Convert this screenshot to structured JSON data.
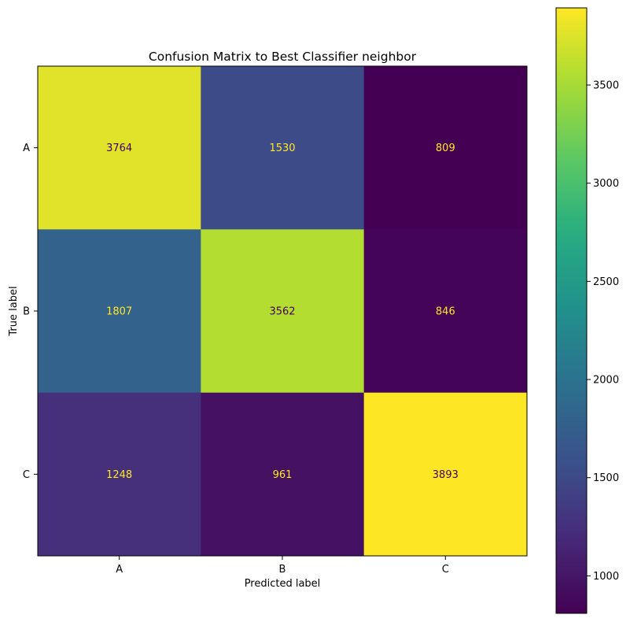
{
  "chart_data": {
    "type": "heatmap",
    "title": "Confusion Matrix to Best Classifier neighbor",
    "xlabel": "Predicted label",
    "ylabel": "True label",
    "x_categories": [
      "A",
      "B",
      "C"
    ],
    "y_categories": [
      "A",
      "B",
      "C"
    ],
    "values": [
      [
        3764,
        1530,
        809
      ],
      [
        1807,
        3562,
        846
      ],
      [
        1248,
        961,
        3893
      ]
    ],
    "colormap": "viridis",
    "colorbar": {
      "range": [
        809,
        3893
      ],
      "ticks": [
        1000,
        1500,
        2000,
        2500,
        3000,
        3500
      ]
    },
    "text_colors": {
      "dark_cell": "#fde725",
      "light_cell": "#440154"
    }
  }
}
